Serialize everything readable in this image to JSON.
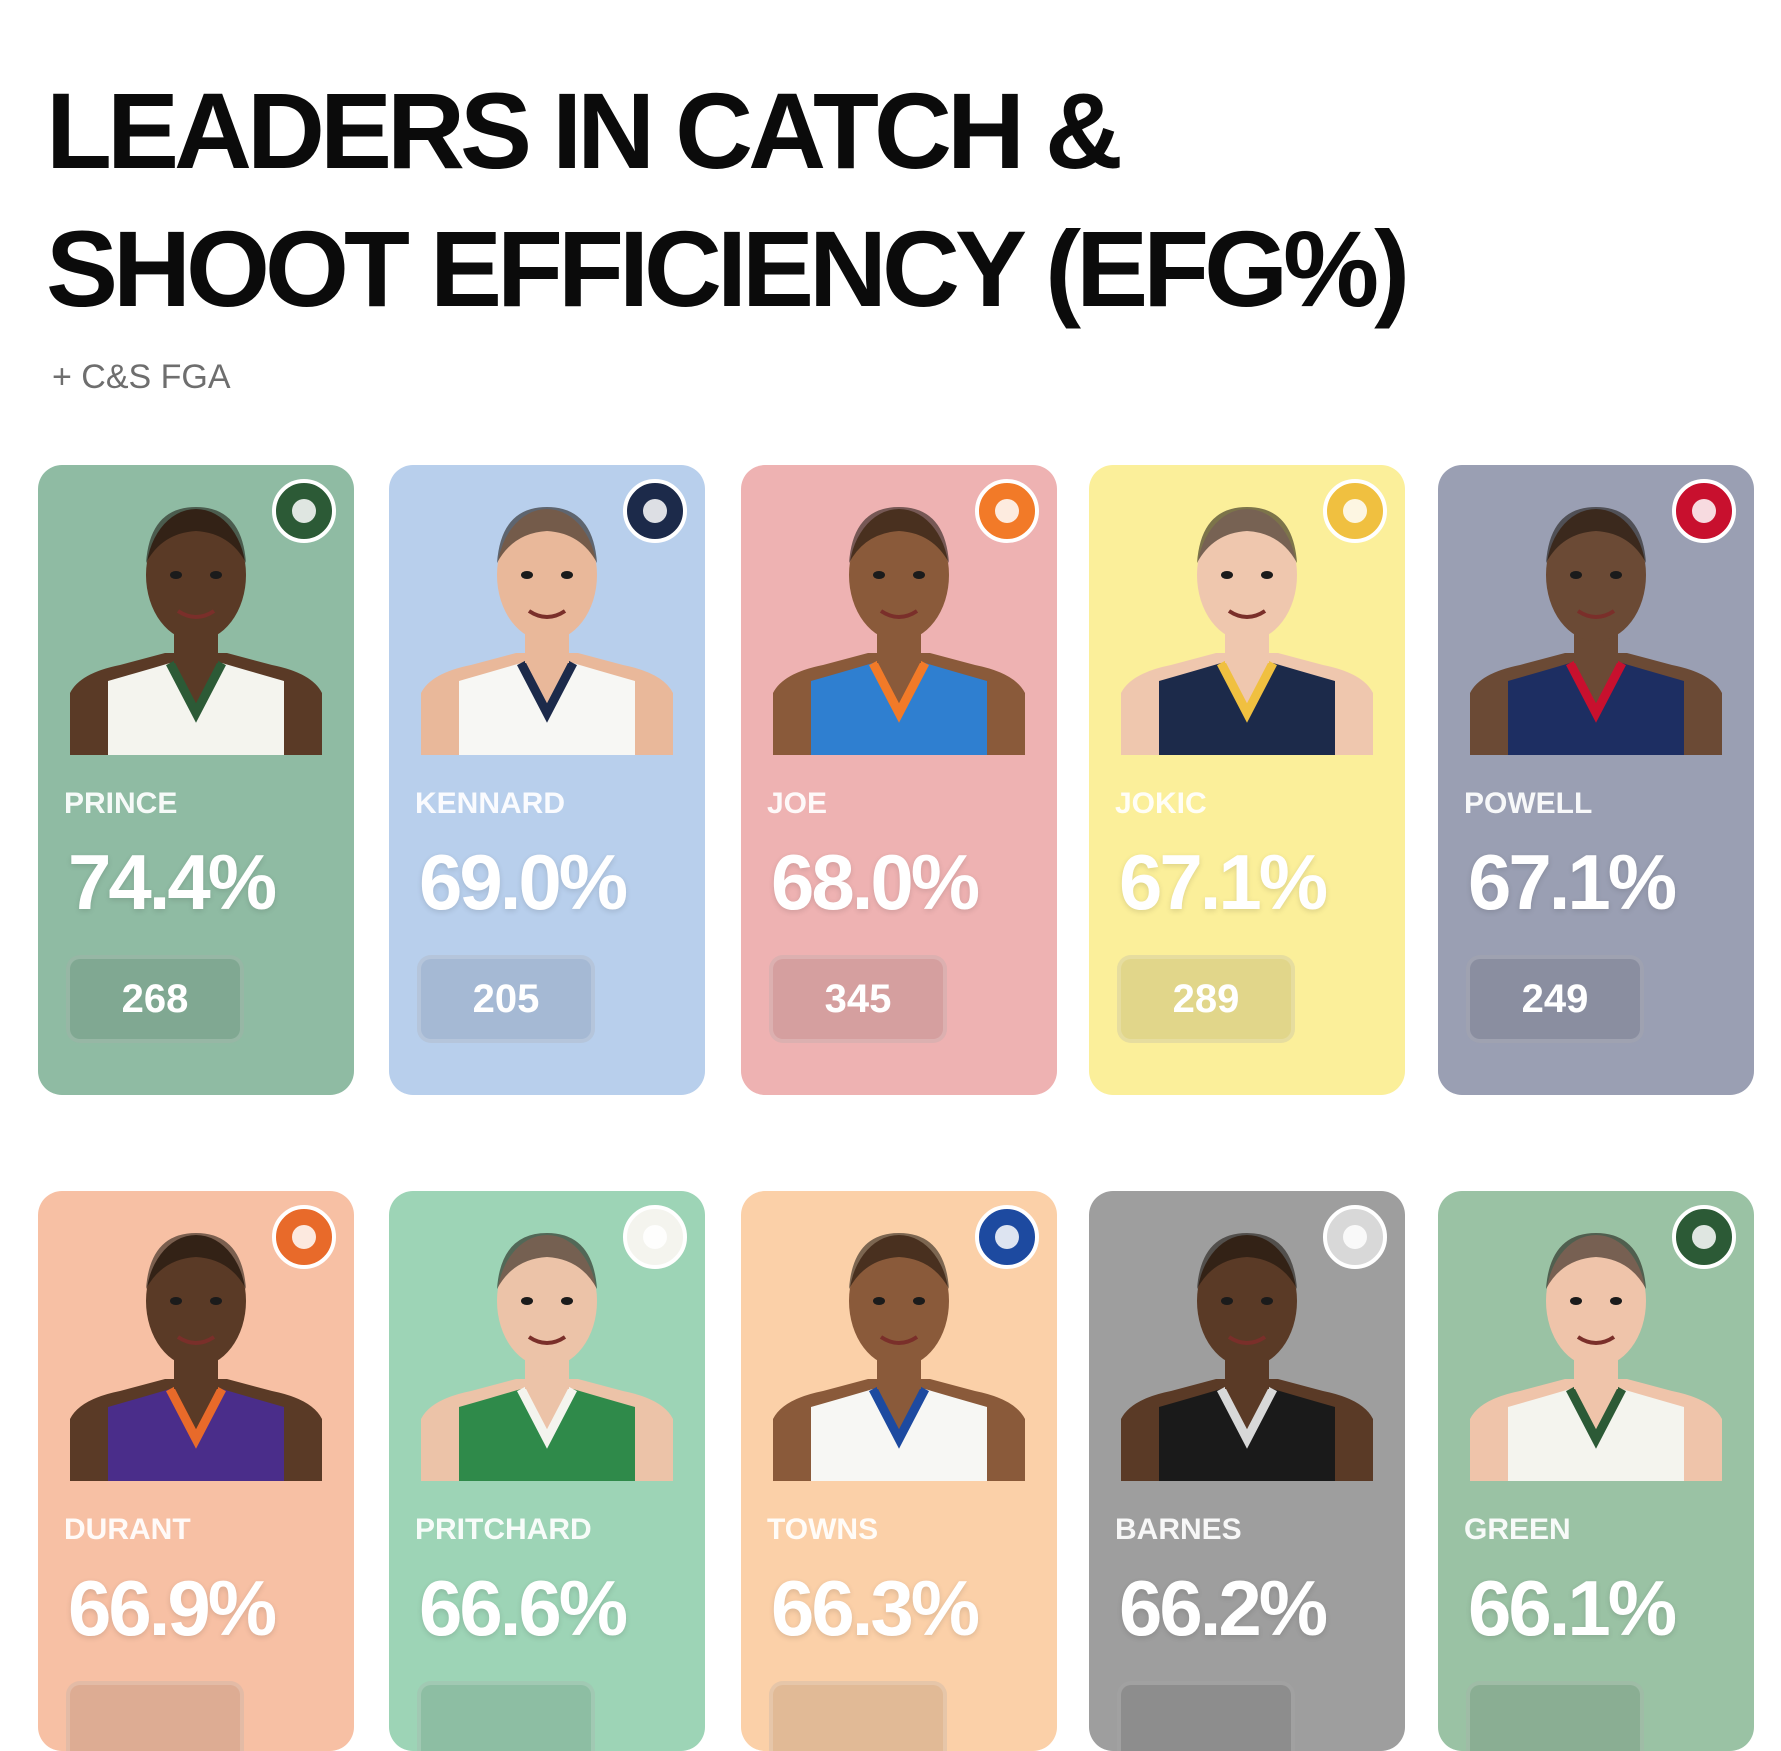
{
  "header": {
    "title_line1": "LEADERS IN CATCH &",
    "title_line2": "SHOOT EFFICIENCY (EFG%)",
    "subtitle": "+ C&S FGA"
  },
  "players": [
    {
      "name": "PRINCE",
      "efg": "74.4%",
      "fga": "268",
      "bg": "#8fbba3",
      "skin": "#5a3a26",
      "jersey": "#f4f4ee",
      "trim": "#2c5a36",
      "logo": "bucks-logo"
    },
    {
      "name": "KENNARD",
      "efg": "69.0%",
      "fga": "205",
      "bg": "#b8cfec",
      "skin": "#e9b89a",
      "jersey": "#f7f7f4",
      "trim": "#1c2a4a",
      "logo": "grizzlies-logo"
    },
    {
      "name": "JOE",
      "efg": "68.0%",
      "fga": "345",
      "bg": "#eeb2b2",
      "skin": "#8a5a3a",
      "jersey": "#2f7fd0",
      "trim": "#f27a28",
      "logo": "thunder-logo"
    },
    {
      "name": "JOKIC",
      "efg": "67.1%",
      "fga": "289",
      "bg": "#fbef9a",
      "skin": "#efc7ae",
      "jersey": "#1c2a4a",
      "trim": "#f0c040",
      "logo": "nuggets-logo"
    },
    {
      "name": "POWELL",
      "efg": "67.1%",
      "fga": "249",
      "bg": "#9a9fb3",
      "skin": "#6b4a35",
      "jersey": "#1d2e62",
      "trim": "#c8102e",
      "logo": "clippers-logo"
    },
    {
      "name": "DURANT",
      "efg": "66.9%",
      "fga": null,
      "bg": "#f7c0a4",
      "skin": "#5a3a26",
      "jersey": "#4a2d8a",
      "trim": "#e86a2a",
      "logo": "suns-logo"
    },
    {
      "name": "PRITCHARD",
      "efg": "66.6%",
      "fga": null,
      "bg": "#9dd4b6",
      "skin": "#ecc3a8",
      "jersey": "#2f8a4a",
      "trim": "#f4f4ee",
      "logo": "celtics-logo"
    },
    {
      "name": "TOWNS",
      "efg": "66.3%",
      "fga": null,
      "bg": "#fbd0a8",
      "skin": "#8a5a3a",
      "jersey": "#f7f7f4",
      "trim": "#1d4aa0",
      "logo": "knicks-logo"
    },
    {
      "name": "BARNES",
      "efg": "66.2%",
      "fga": null,
      "bg": "#9e9e9e",
      "skin": "#5a3a26",
      "jersey": "#1a1a1a",
      "trim": "#d8d8d8",
      "logo": "spurs-logo"
    },
    {
      "name": "GREEN",
      "efg": "66.1%",
      "fga": null,
      "bg": "#9ac2a4",
      "skin": "#efc4aa",
      "jersey": "#f4f4ee",
      "trim": "#2c5a36",
      "logo": "bucks-logo"
    }
  ]
}
